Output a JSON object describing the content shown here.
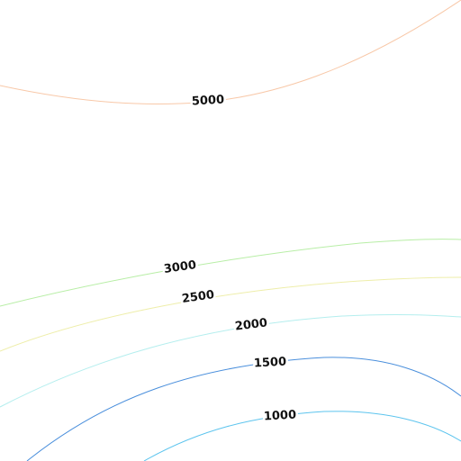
{
  "chart_data": {
    "type": "contour",
    "levels": [
      1000,
      1500,
      2000,
      2500,
      3000,
      5000
    ],
    "colors": [
      "#5cc4ee",
      "#4a8fdc",
      "#b4eeee",
      "#eeeeaa",
      "#b8eea6",
      "#f8c8a8"
    ]
  }
}
